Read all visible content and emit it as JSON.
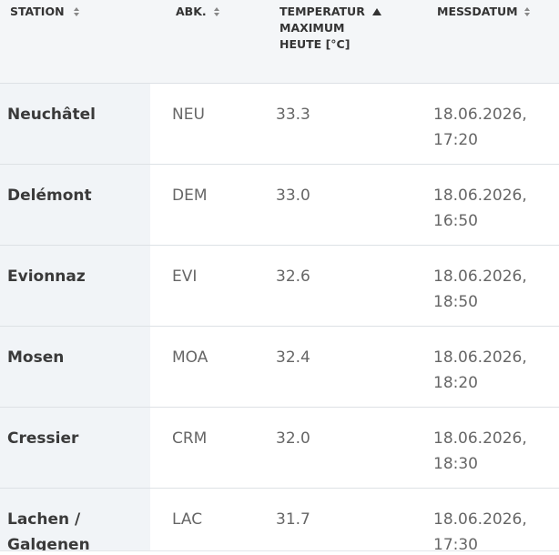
{
  "table": {
    "headers": [
      "STATION",
      "ABK.",
      "TEMPERATUR MAXIMUM HEUTE [°C]",
      "MESSDATUM"
    ],
    "rows": [
      [
        "Neuchâtel",
        "NEU",
        "33.3",
        "18.06.2026, 17:20"
      ],
      [
        "Delémont",
        "DEM",
        "33.0",
        "18.06.2026, 16:50"
      ],
      [
        "Evionnaz",
        "EVI",
        "32.6",
        "18.06.2026, 18:50"
      ],
      [
        "Mosen",
        "MOA",
        "32.4",
        "18.06.2026, 18:20"
      ],
      [
        "Cressier",
        "CRM",
        "32.0",
        "18.06.2026, 18:30"
      ],
      [
        "Lachen / Galgenen",
        "LAC",
        "31.7",
        "18.06.2026, 17:30"
      ]
    ]
  }
}
